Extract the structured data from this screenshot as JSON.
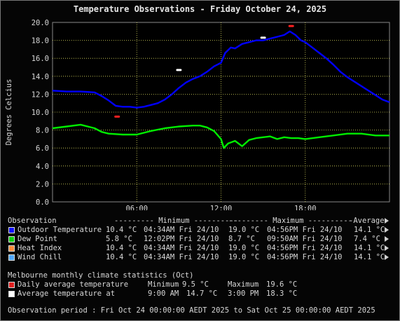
{
  "chart_data": {
    "type": "line",
    "title": "Temperature Observations - Friday October 24, 2025",
    "ylabel": "Degrees Celcius",
    "ylim": [
      0,
      20
    ],
    "yticks": [
      "0.0",
      "2.0",
      "4.0",
      "6.0",
      "8.0",
      "10.0",
      "12.0",
      "14.0",
      "16.0",
      "18.0",
      "20.0"
    ],
    "xlim": [
      0,
      24
    ],
    "xticks": [
      {
        "h": 6,
        "label": "06:00"
      },
      {
        "h": 12,
        "label": "12:00"
      },
      {
        "h": 18,
        "label": "18:00"
      }
    ],
    "grid": true,
    "series": [
      {
        "name": "Outdoor Temperature",
        "color": "#0000ff",
        "points": [
          [
            0,
            12.4
          ],
          [
            1,
            12.3
          ],
          [
            2,
            12.3
          ],
          [
            3,
            12.2
          ],
          [
            3.5,
            11.8
          ],
          [
            4,
            11.3
          ],
          [
            4.5,
            10.7
          ],
          [
            5,
            10.6
          ],
          [
            5.5,
            10.6
          ],
          [
            6,
            10.5
          ],
          [
            6.5,
            10.6
          ],
          [
            7,
            10.8
          ],
          [
            7.5,
            11.0
          ],
          [
            8,
            11.4
          ],
          [
            8.5,
            12.0
          ],
          [
            9,
            12.7
          ],
          [
            9.5,
            13.3
          ],
          [
            10,
            13.7
          ],
          [
            10.5,
            14.0
          ],
          [
            11,
            14.5
          ],
          [
            11.5,
            15.1
          ],
          [
            12,
            15.5
          ],
          [
            12.3,
            16.6
          ],
          [
            12.7,
            17.2
          ],
          [
            13,
            17.1
          ],
          [
            13.5,
            17.6
          ],
          [
            14,
            17.8
          ],
          [
            14.5,
            18.0
          ],
          [
            15,
            18.0
          ],
          [
            15.5,
            18.2
          ],
          [
            16,
            18.4
          ],
          [
            16.5,
            18.6
          ],
          [
            16.9,
            19.0
          ],
          [
            17.3,
            18.6
          ],
          [
            17.7,
            18.0
          ],
          [
            18,
            17.8
          ],
          [
            18.5,
            17.2
          ],
          [
            19,
            16.6
          ],
          [
            19.5,
            16.0
          ],
          [
            20,
            15.3
          ],
          [
            20.5,
            14.5
          ],
          [
            21,
            13.9
          ],
          [
            21.5,
            13.4
          ],
          [
            22,
            12.9
          ],
          [
            22.5,
            12.4
          ],
          [
            23,
            11.9
          ],
          [
            23.5,
            11.4
          ],
          [
            24,
            11.1
          ]
        ]
      },
      {
        "name": "Dew Point",
        "color": "#00ee00",
        "points": [
          [
            0,
            8.2
          ],
          [
            1,
            8.4
          ],
          [
            2,
            8.6
          ],
          [
            3,
            8.2
          ],
          [
            3.5,
            7.8
          ],
          [
            4,
            7.6
          ],
          [
            5,
            7.5
          ],
          [
            6,
            7.5
          ],
          [
            7,
            7.9
          ],
          [
            8,
            8.2
          ],
          [
            9,
            8.4
          ],
          [
            10,
            8.5
          ],
          [
            10.5,
            8.5
          ],
          [
            11,
            8.3
          ],
          [
            11.5,
            7.9
          ],
          [
            12,
            7.0
          ],
          [
            12.2,
            6.0
          ],
          [
            12.5,
            6.5
          ],
          [
            13,
            6.8
          ],
          [
            13.5,
            6.2
          ],
          [
            14,
            6.9
          ],
          [
            14.5,
            7.1
          ],
          [
            15,
            7.2
          ],
          [
            15.5,
            7.3
          ],
          [
            16,
            7.0
          ],
          [
            16.5,
            7.2
          ],
          [
            17,
            7.1
          ],
          [
            17.5,
            7.1
          ],
          [
            18,
            7.0
          ],
          [
            19,
            7.2
          ],
          [
            20,
            7.4
          ],
          [
            21,
            7.6
          ],
          [
            22,
            7.6
          ],
          [
            23,
            7.4
          ],
          [
            24,
            7.4
          ]
        ]
      }
    ],
    "monthly_markers": [
      {
        "kind": "daily_min",
        "hour": 4.6,
        "value": 9.5,
        "color": "#ff2020"
      },
      {
        "kind": "daily_max",
        "hour": 17.0,
        "value": 19.6,
        "color": "#ff2020"
      },
      {
        "kind": "avg_9am",
        "hour": 9.0,
        "value": 14.7,
        "color": "#ffffff"
      },
      {
        "kind": "avg_3pm",
        "hour": 15.0,
        "value": 18.3,
        "color": "#ffffff"
      }
    ]
  },
  "legend": {
    "header": {
      "observation": "Observation",
      "minimum": "--------- Minimum ----------",
      "maximum": "--------- Maximum ----------",
      "average": "-Average-"
    },
    "rows": [
      {
        "name": "Outdoor Temperature",
        "color": "#1010ff",
        "min_val": "10.4 °C",
        "min_time": "04:34AM Fri 24/10",
        "max_val": "19.0 °C",
        "max_time": "04:56PM Fri 24/10",
        "avg": "14.1 °C"
      },
      {
        "name": "Dew Point",
        "color": "#10d010",
        "min_val": "5.8 °C",
        "min_time": "12:02PM Fri 24/10",
        "max_val": "8.7 °C",
        "max_time": "09:50AM Fri 24/10",
        "avg": "7.4 °C"
      },
      {
        "name": "Heat Index",
        "color": "#ff8c3a",
        "min_val": "10.4 °C",
        "min_time": "04:34AM Fri 24/10",
        "max_val": "19.0 °C",
        "max_time": "04:56PM Fri 24/10",
        "avg": "14.1 °C"
      },
      {
        "name": "Wind Chill",
        "color": "#4fa8ff",
        "min_val": "10.4 °C",
        "min_time": "04:34AM Fri 24/10",
        "max_val": "19.0 °C",
        "max_time": "04:56PM Fri 24/10",
        "avg": "14.1 °C"
      }
    ]
  },
  "monthly": {
    "title": "Melbourne monthly climate statistics (Oct)",
    "row1": {
      "label": "Daily average temperature",
      "color": "#e02020",
      "k1": "Minimum",
      "v1": "9.5 °C",
      "k2": "Maximum",
      "v2": "19.6 °C"
    },
    "row2": {
      "label": "Average temperature at",
      "color": "#ffffff",
      "k1": "9:00 AM",
      "v1": "14.7 °C",
      "k2": "3:00 PM",
      "v2": "18.3 °C"
    }
  },
  "period": "Observation period : Fri Oct 24 00:00:00 AEDT 2025 to Sat Oct 25 00:00:00 AEDT 2025"
}
